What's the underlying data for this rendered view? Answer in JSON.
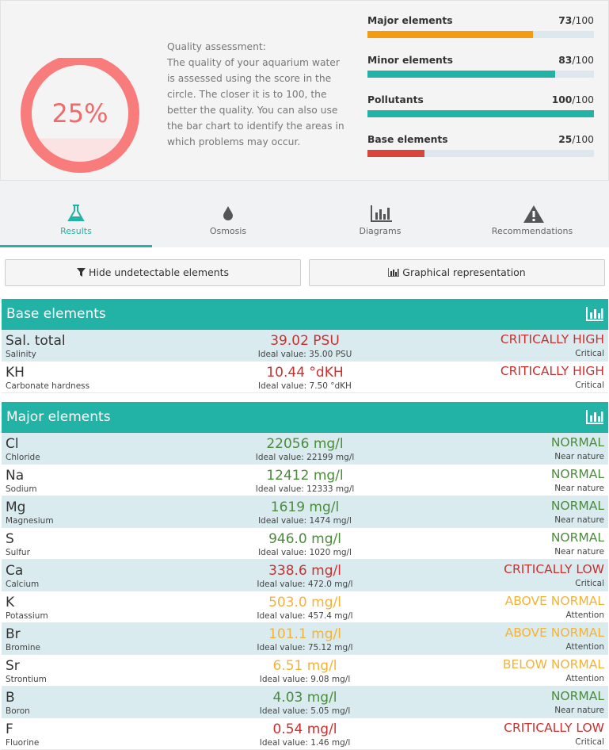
{
  "summary": {
    "gauge": {
      "value": 25,
      "label": "25%"
    },
    "description_title": "Quality assessment:",
    "description": "The quality of your aquarium water is assessed using the score in the circle. The closer it is to 100, the better the quality. You can also use the bar chart to identify the areas in which problems may occur.",
    "scores": [
      {
        "name": "Major elements",
        "score": 73,
        "max": 100,
        "color": "#f39c12"
      },
      {
        "name": "Minor elements",
        "score": 83,
        "max": 100,
        "color": "#22b2a6"
      },
      {
        "name": "Pollutants",
        "score": 100,
        "max": 100,
        "color": "#22b2a6"
      },
      {
        "name": "Base elements",
        "score": 25,
        "max": 100,
        "color": "#d9453a"
      }
    ]
  },
  "tabs": [
    {
      "label": "Results",
      "active": true
    },
    {
      "label": "Osmosis",
      "active": false
    },
    {
      "label": "Diagrams",
      "active": false
    },
    {
      "label": "Recommendations",
      "active": false
    }
  ],
  "buttons": [
    "Hide undetectable elements",
    "Graphical representation"
  ],
  "sections": [
    {
      "title": "Base elements",
      "rows": [
        {
          "symbol": "Sal. total",
          "name": "Salinity",
          "value": "39.02 PSU",
          "ideal": "Ideal value: 35.00 PSU",
          "status": "CRITICALLY HIGH",
          "level": "Critical",
          "color": "#cc2f2f"
        },
        {
          "symbol": "KH",
          "name": "Carbonate hardness",
          "value": "10.44 °dKH",
          "ideal": "Ideal value: 7.50 °dKH",
          "status": "CRITICALLY HIGH",
          "level": "Critical",
          "color": "#cc2f2f"
        }
      ]
    },
    {
      "title": "Major elements",
      "rows": [
        {
          "symbol": "Cl",
          "name": "Chloride",
          "value": "22056 mg/l",
          "ideal": "Ideal value: 22199 mg/l",
          "status": "NORMAL",
          "level": "Near nature",
          "color": "#4a8c3a"
        },
        {
          "symbol": "Na",
          "name": "Sodium",
          "value": "12412 mg/l",
          "ideal": "Ideal value: 12333 mg/l",
          "status": "NORMAL",
          "level": "Near nature",
          "color": "#4a8c3a"
        },
        {
          "symbol": "Mg",
          "name": "Magnesium",
          "value": "1619 mg/l",
          "ideal": "Ideal value: 1474 mg/l",
          "status": "NORMAL",
          "level": "Near nature",
          "color": "#4a8c3a"
        },
        {
          "symbol": "S",
          "name": "Sulfur",
          "value": "946.0 mg/l",
          "ideal": "Ideal value: 1020 mg/l",
          "status": "NORMAL",
          "level": "Near nature",
          "color": "#4a8c3a"
        },
        {
          "symbol": "Ca",
          "name": "Calcium",
          "value": "338.6 mg/l",
          "ideal": "Ideal value: 472.0 mg/l",
          "status": "CRITICALLY LOW",
          "level": "Critical",
          "color": "#cc2f2f"
        },
        {
          "symbol": "K",
          "name": "Potassium",
          "value": "503.0 mg/l",
          "ideal": "Ideal value: 457.4 mg/l",
          "status": "ABOVE NORMAL",
          "level": "Attention",
          "color": "#f5b335"
        },
        {
          "symbol": "Br",
          "name": "Bromine",
          "value": "101.1 mg/l",
          "ideal": "Ideal value: 75.12 mg/l",
          "status": "ABOVE NORMAL",
          "level": "Attention",
          "color": "#f5b335"
        },
        {
          "symbol": "Sr",
          "name": "Strontium",
          "value": "6.51 mg/l",
          "ideal": "Ideal value: 9.08 mg/l",
          "status": "BELOW NORMAL",
          "level": "Attention",
          "color": "#f5b335"
        },
        {
          "symbol": "B",
          "name": "Boron",
          "value": "4.03 mg/l",
          "ideal": "Ideal value: 5.05 mg/l",
          "status": "NORMAL",
          "level": "Near nature",
          "color": "#4a8c3a"
        },
        {
          "symbol": "F",
          "name": "Fluorine",
          "value": "0.54 mg/l",
          "ideal": "Ideal value: 1.46 mg/l",
          "status": "CRITICALLY LOW",
          "level": "Critical",
          "color": "#cc2f2f"
        }
      ]
    }
  ]
}
